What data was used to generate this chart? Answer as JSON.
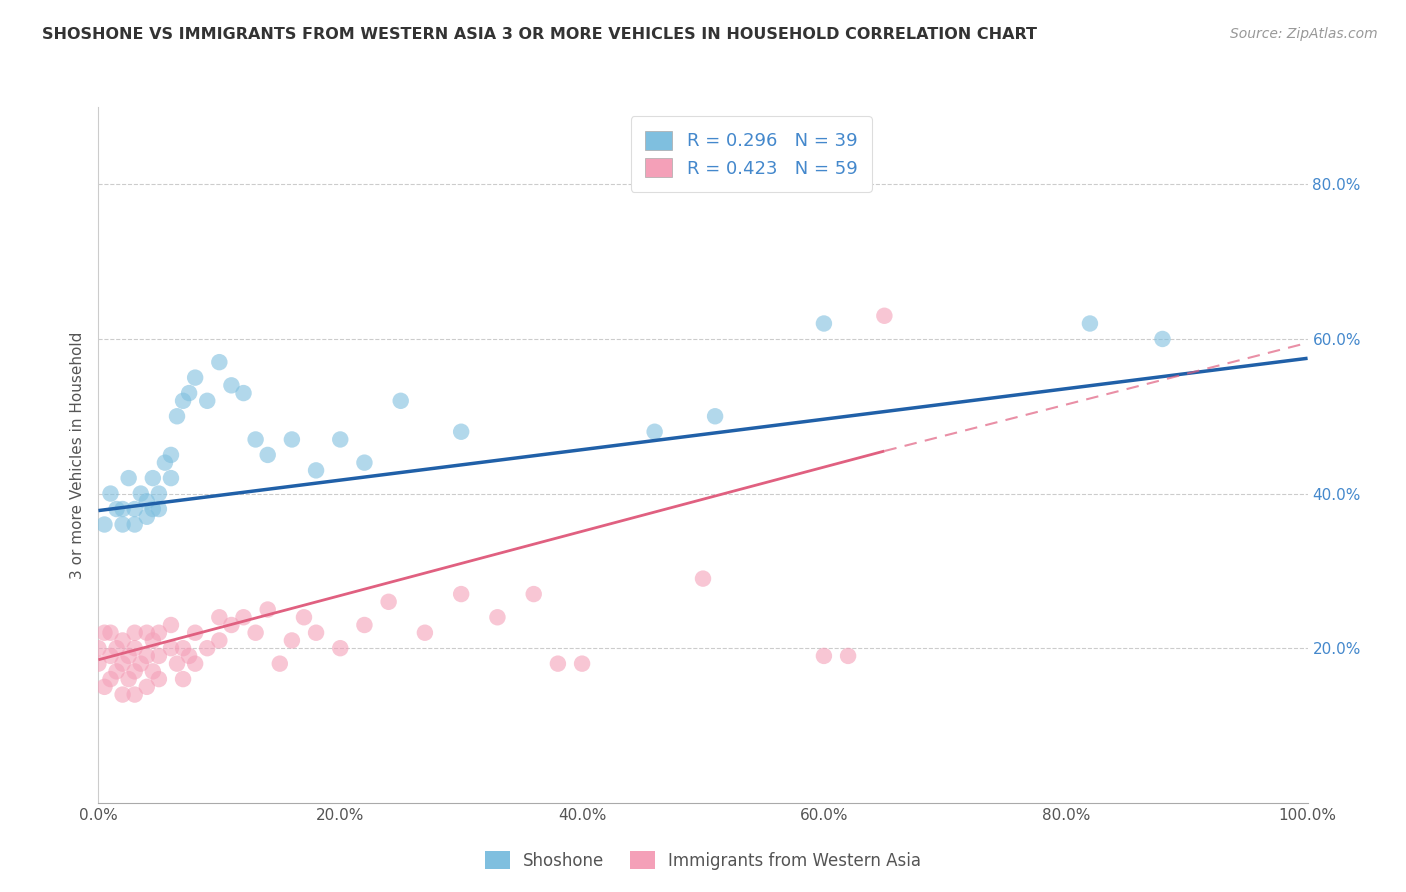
{
  "title": "SHOSHONE VS IMMIGRANTS FROM WESTERN ASIA 3 OR MORE VEHICLES IN HOUSEHOLD CORRELATION CHART",
  "source": "Source: ZipAtlas.com",
  "ylabel": "3 or more Vehicles in Household",
  "xlabel_shoshone": "Shoshone",
  "xlabel_immigrants": "Immigrants from Western Asia",
  "r_shoshone": 0.296,
  "n_shoshone": 39,
  "r_immigrants": 0.423,
  "n_immigrants": 59,
  "xlim": [
    0.0,
    1.0
  ],
  "ylim": [
    0.0,
    0.9
  ],
  "xticks": [
    0.0,
    0.2,
    0.4,
    0.6,
    0.8,
    1.0
  ],
  "yticks": [
    0.2,
    0.4,
    0.6,
    0.8
  ],
  "xtick_labels": [
    "0.0%",
    "20.0%",
    "40.0%",
    "60.0%",
    "80.0%",
    "100.0%"
  ],
  "ytick_labels": [
    "20.0%",
    "40.0%",
    "60.0%",
    "80.0%"
  ],
  "color_shoshone": "#7fbfdf",
  "color_immigrants": "#f4a0b8",
  "line_color_shoshone": "#2060a8",
  "line_color_immigrants": "#e06080",
  "background_color": "#ffffff",
  "shoshone_x": [
    0.005,
    0.01,
    0.015,
    0.02,
    0.02,
    0.025,
    0.03,
    0.03,
    0.035,
    0.04,
    0.04,
    0.045,
    0.045,
    0.05,
    0.05,
    0.055,
    0.06,
    0.06,
    0.065,
    0.07,
    0.075,
    0.08,
    0.09,
    0.1,
    0.11,
    0.12,
    0.13,
    0.14,
    0.16,
    0.18,
    0.2,
    0.22,
    0.25,
    0.3,
    0.46,
    0.51,
    0.6,
    0.82,
    0.88
  ],
  "shoshone_y": [
    0.36,
    0.4,
    0.38,
    0.38,
    0.36,
    0.42,
    0.38,
    0.36,
    0.4,
    0.39,
    0.37,
    0.42,
    0.38,
    0.4,
    0.38,
    0.44,
    0.42,
    0.45,
    0.5,
    0.52,
    0.53,
    0.55,
    0.52,
    0.57,
    0.54,
    0.53,
    0.47,
    0.45,
    0.47,
    0.43,
    0.47,
    0.44,
    0.52,
    0.48,
    0.48,
    0.5,
    0.62,
    0.62,
    0.6
  ],
  "immigrants_x": [
    0.0,
    0.0,
    0.005,
    0.005,
    0.01,
    0.01,
    0.01,
    0.015,
    0.015,
    0.02,
    0.02,
    0.02,
    0.025,
    0.025,
    0.03,
    0.03,
    0.03,
    0.03,
    0.035,
    0.04,
    0.04,
    0.04,
    0.045,
    0.045,
    0.05,
    0.05,
    0.05,
    0.06,
    0.06,
    0.065,
    0.07,
    0.07,
    0.075,
    0.08,
    0.08,
    0.09,
    0.1,
    0.1,
    0.11,
    0.12,
    0.13,
    0.14,
    0.15,
    0.16,
    0.17,
    0.18,
    0.2,
    0.22,
    0.24,
    0.27,
    0.3,
    0.33,
    0.36,
    0.38,
    0.4,
    0.5,
    0.6,
    0.62,
    0.65
  ],
  "immigrants_y": [
    0.18,
    0.2,
    0.15,
    0.22,
    0.16,
    0.19,
    0.22,
    0.17,
    0.2,
    0.14,
    0.18,
    0.21,
    0.16,
    0.19,
    0.14,
    0.17,
    0.2,
    0.22,
    0.18,
    0.15,
    0.19,
    0.22,
    0.17,
    0.21,
    0.16,
    0.19,
    0.22,
    0.2,
    0.23,
    0.18,
    0.2,
    0.16,
    0.19,
    0.22,
    0.18,
    0.2,
    0.21,
    0.24,
    0.23,
    0.24,
    0.22,
    0.25,
    0.18,
    0.21,
    0.24,
    0.22,
    0.2,
    0.23,
    0.26,
    0.22,
    0.27,
    0.24,
    0.27,
    0.18,
    0.18,
    0.29,
    0.19,
    0.19,
    0.63
  ],
  "line_shoshone_x0": 0.0,
  "line_shoshone_y0": 0.378,
  "line_shoshone_x1": 1.0,
  "line_shoshone_y1": 0.575,
  "line_immigrants_solid_x0": 0.0,
  "line_immigrants_solid_y0": 0.185,
  "line_immigrants_solid_x1": 0.65,
  "line_immigrants_solid_y1": 0.455,
  "line_immigrants_dash_x0": 0.65,
  "line_immigrants_dash_y0": 0.455,
  "line_immigrants_dash_x1": 1.0,
  "line_immigrants_dash_y1": 0.595
}
